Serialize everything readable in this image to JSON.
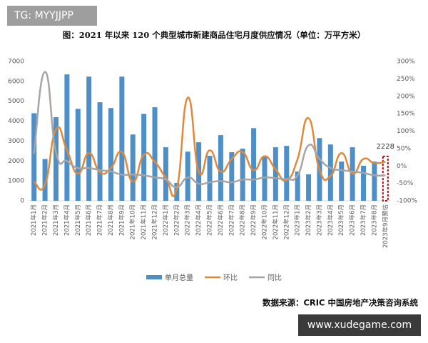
{
  "chart_data": {
    "type": "bar-line",
    "title": "图：2021 年以来 120 个典型城市新建商品住宅月度供应情况（单位：万平方米）",
    "watermark": "TG: MYYJJPP",
    "source": "数据来源：CRIC 中国房地产决策咨询系统",
    "site": "www.xudegame.com",
    "categories": [
      "2021年1月",
      "2021年2月",
      "2021年3月",
      "2021年4月",
      "2021年5月",
      "2021年6月",
      "2021年7月",
      "2021年8月",
      "2021年9月",
      "2021年10月",
      "2021年11月",
      "2021年12月",
      "2022年1月",
      "2022年2月",
      "2022年3月",
      "2022年4月",
      "2022年5月",
      "2022年6月",
      "2022年7月",
      "2022年8月",
      "2022年9月",
      "2022年10月",
      "2022年11月",
      "2022年12月",
      "2023年1月",
      "2023年2月",
      "2023年3月",
      "2023年4月",
      "2023年5月",
      "2023年6月",
      "2023年7月",
      "2023年8月",
      "2023年9月预估"
    ],
    "series": [
      {
        "name": "单月总量",
        "type": "bar",
        "color": "#4f8fc8",
        "forecast_color": "#c00000",
        "values": [
          4400,
          2100,
          4200,
          6350,
          4620,
          6240,
          4950,
          4660,
          6240,
          3330,
          4370,
          4700,
          2690,
          900,
          2470,
          2940,
          2260,
          3300,
          2440,
          2620,
          3650,
          2190,
          2690,
          2760,
          1470,
          1330,
          3150,
          2830,
          1970,
          2690,
          1760,
          1970,
          2228
        ]
      },
      {
        "name": "环比",
        "type": "line",
        "axis": "y2",
        "color": "#e0893a",
        "values": [
          -45,
          -53,
          105,
          45,
          -22,
          37,
          -18,
          -6,
          40,
          -45,
          32,
          12,
          -33,
          -65,
          196,
          -16,
          45,
          -16,
          20,
          40,
          -12,
          28,
          -10,
          -41,
          20,
          137,
          -12,
          -29,
          37,
          -22,
          20,
          8,
          12
        ]
      },
      {
        "name": "同比",
        "type": "line",
        "axis": "y2",
        "color": "#a5a5a5",
        "values": [
          35,
          270,
          39,
          14,
          -6,
          -6,
          -12,
          -16,
          -25,
          -25,
          -27,
          -33,
          -39,
          -61,
          -33,
          -51,
          -47,
          -43,
          -47,
          -39,
          -39,
          -33,
          -35,
          -37,
          -27,
          59,
          20,
          -6,
          -12,
          -16,
          -20,
          -27,
          -27
        ]
      }
    ],
    "ylim": [
      0,
      7000
    ],
    "yticks": [
      0,
      1000,
      2000,
      3000,
      4000,
      5000,
      6000,
      7000
    ],
    "y2lim": [
      -100,
      300
    ],
    "y2ticks": [
      {
        "value": -100,
        "label": "-100%"
      },
      {
        "value": -50,
        "label": "-50%"
      },
      {
        "value": 0,
        "label": "0%"
      },
      {
        "value": 50,
        "label": "50%"
      },
      {
        "value": 100,
        "label": "100%"
      },
      {
        "value": 150,
        "label": "150%"
      },
      {
        "value": 200,
        "label": "200%"
      },
      {
        "value": 250,
        "label": "250%"
      },
      {
        "value": 300,
        "label": "300%"
      }
    ],
    "grid": false
  }
}
